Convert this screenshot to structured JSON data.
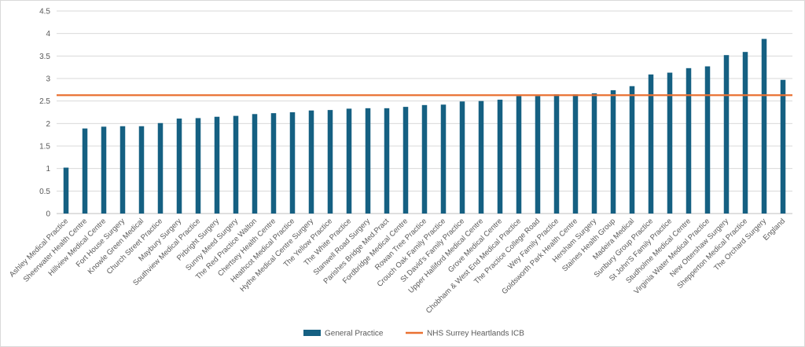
{
  "chart_data": {
    "type": "bar",
    "title": "",
    "xlabel": "",
    "ylabel": "",
    "ylim": [
      0,
      4.5
    ],
    "yticks": [
      "0",
      "0.5",
      "1",
      "1.5",
      "2",
      "2.5",
      "3",
      "3.5",
      "4",
      "4.5"
    ],
    "grid": true,
    "legend_position": "bottom",
    "categories": [
      "Ashley Medical Practice",
      "Sheerwater Health Centre",
      "Hillview Medical Centre",
      "Fort House Surgery",
      "Knowle Green Medical",
      "Church Street Practice",
      "Maybury Surgery",
      "Southview Medical Practice",
      "Pirbright Surgery",
      "Sunny Meed Surgery",
      "The Red Practice Walton",
      "Chertsey Health Centre",
      "Heathcot Medical Practice",
      "Hythe Medical Centre Surgery",
      "The Yellow Practice",
      "The White Practice",
      "Stanwell Road Surgery",
      "Parishes Bridge Med.Pract",
      "Fordbridge Medical Centre",
      "Rowan Tree Practice",
      "Crouch Oak Family Practice",
      "St David's Family Practice",
      "Upper Halliford Medical Centre",
      "Grove Medical Centre",
      "Chobham & West End Medical Practice",
      "The Practice College Road",
      "Wey Family Practice",
      "Goldsworth Park Health Centre",
      "Hersham Surgery",
      "Staines Health Group",
      "Madeira Medical",
      "Sunbury Group Practice",
      "St John'S Family Practice",
      "Studholme Medical Centre",
      "Virginia Water Medical Practice",
      "New Ottershaw Surgery",
      "Shepperton Medical Practice",
      "The Orchard Surgery",
      "England"
    ],
    "series": [
      {
        "name": "General Practice",
        "color": "#156082",
        "values": [
          1.02,
          1.89,
          1.93,
          1.94,
          1.94,
          2.01,
          2.11,
          2.12,
          2.15,
          2.17,
          2.21,
          2.23,
          2.25,
          2.29,
          2.3,
          2.33,
          2.34,
          2.34,
          2.37,
          2.41,
          2.42,
          2.49,
          2.5,
          2.53,
          2.61,
          2.61,
          2.65,
          2.65,
          2.67,
          2.74,
          2.83,
          3.09,
          3.13,
          3.23,
          3.27,
          3.52,
          3.59,
          3.88,
          2.97
        ]
      }
    ],
    "reference_lines": [
      {
        "name": "NHS Surrey Heartlands ICB",
        "color": "#E97132",
        "value": 2.63
      }
    ]
  }
}
